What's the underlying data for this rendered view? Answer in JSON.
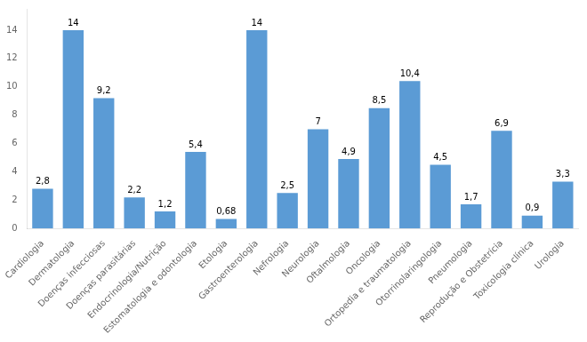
{
  "chart_data": {
    "type": "bar",
    "categories": [
      "Cardiologia",
      "Dermatologia",
      "Doenças infecciosas",
      "Doenças parasitárias",
      "Endocrinologia/Nutrição",
      "Estomatologia e odontologia",
      "Etologia",
      "Gastroenterologia",
      "Nefrologia",
      "Neurologia",
      "Oftalmologia",
      "Oncologia",
      "Ortopedia e traumatologia",
      "Otorrinolaringologia",
      "Pneumologia",
      "Reprodução e Obstetrícia",
      "Toxicologia clínica",
      "Urologia"
    ],
    "values": [
      2.8,
      14,
      9.2,
      2.2,
      1.2,
      5.4,
      0.68,
      14,
      2.5,
      7,
      4.9,
      8.5,
      10.4,
      4.5,
      1.7,
      6.9,
      0.9,
      3.3
    ],
    "value_labels": [
      "2,8",
      "14",
      "9,2",
      "2,2",
      "1,2",
      "5,4",
      "0,68",
      "14",
      "2,5",
      "7",
      "4,9",
      "8,5",
      "10,4",
      "4,5",
      "1,7",
      "6,9",
      "0,9",
      "3,3"
    ],
    "data_labels": true,
    "color": "#5b9bd5",
    "ylim": [
      0,
      15.5
    ],
    "yticks": [
      0,
      2,
      4,
      6,
      8,
      10,
      12,
      14
    ],
    "grid": false
  }
}
